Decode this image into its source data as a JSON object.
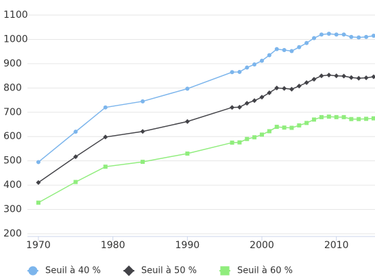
{
  "chart_data": {
    "type": "line",
    "x": [
      1970,
      1975,
      1979,
      1984,
      1990,
      1996,
      1997,
      1998,
      1999,
      2000,
      2001,
      2002,
      2003,
      2004,
      2005,
      2006,
      2007,
      2008,
      2009,
      2010,
      2011,
      2012,
      2013,
      2014,
      2015
    ],
    "series": [
      {
        "name": "Seuil à 40 %",
        "color": "#7cb5ec",
        "symbol": "circle",
        "values": [
          495,
          620,
          720,
          745,
          797,
          865,
          866,
          884,
          897,
          912,
          935,
          960,
          956,
          952,
          968,
          985,
          1005,
          1020,
          1023,
          1020,
          1020,
          1010,
          1008,
          1010,
          1015
        ]
      },
      {
        "name": "Seuil à 50 %",
        "color": "#434348",
        "symbol": "diamond",
        "values": [
          411,
          517,
          598,
          621,
          662,
          720,
          721,
          737,
          748,
          762,
          780,
          800,
          798,
          795,
          808,
          822,
          836,
          850,
          853,
          850,
          849,
          843,
          840,
          842,
          846
        ]
      },
      {
        "name": "Seuil à 60 %",
        "color": "#90ed7d",
        "symbol": "square",
        "values": [
          328,
          413,
          476,
          496,
          530,
          575,
          576,
          590,
          597,
          608,
          622,
          640,
          637,
          636,
          646,
          656,
          670,
          680,
          682,
          680,
          680,
          672,
          672,
          673,
          675
        ]
      }
    ],
    "xlim": [
      1970,
      2015
    ],
    "xticks": [
      1970,
      1980,
      1990,
      2000,
      2010
    ],
    "ylim": [
      200,
      1100
    ],
    "yticks": [
      200,
      300,
      400,
      500,
      600,
      700,
      800,
      900,
      1000,
      1100
    ],
    "grid": true,
    "legend": "bottom"
  }
}
